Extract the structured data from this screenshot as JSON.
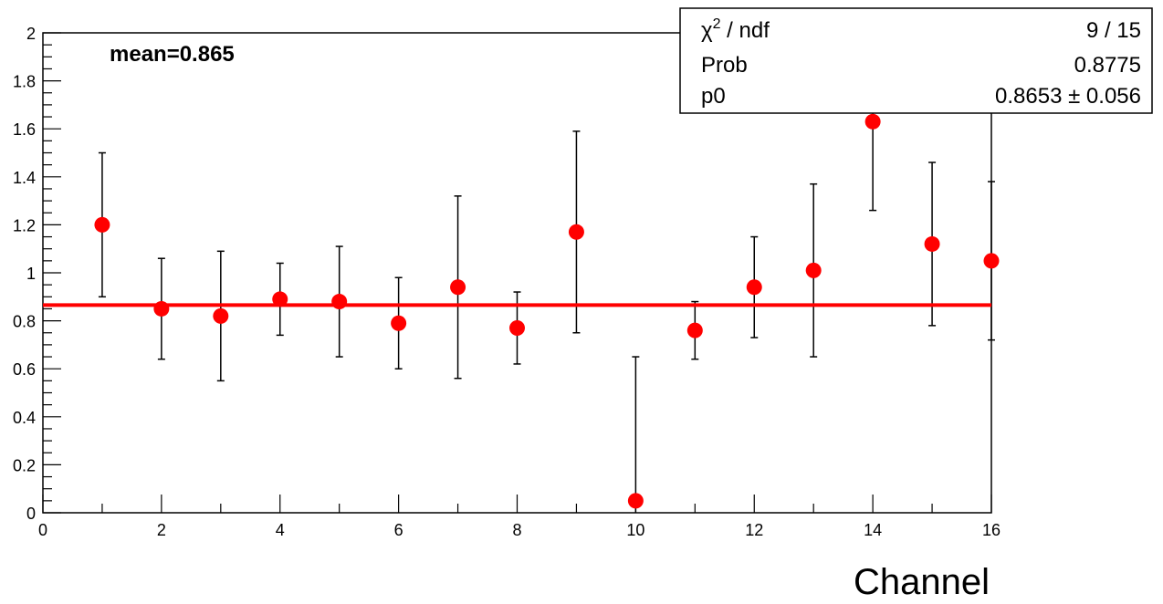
{
  "chart_data": {
    "type": "scatter",
    "xlabel": "Channel",
    "ylabel": "",
    "xlim": [
      0,
      16
    ],
    "ylim": [
      0,
      2
    ],
    "x_ticks": [
      "0",
      "2",
      "4",
      "6",
      "8",
      "10",
      "12",
      "14",
      "16"
    ],
    "y_ticks": [
      "0",
      "0.2",
      "0.4",
      "0.6",
      "0.8",
      "1",
      "1.2",
      "1.4",
      "1.6",
      "1.8",
      "2"
    ],
    "annotation": "mean=0.865",
    "marker_color": "#ff0000",
    "fit_color": "#ff0000",
    "fit_value": 0.8653,
    "points": [
      {
        "x": 1,
        "y": 1.2,
        "ylo": 0.9,
        "yhi": 1.5
      },
      {
        "x": 2,
        "y": 0.85,
        "ylo": 0.64,
        "yhi": 1.06
      },
      {
        "x": 3,
        "y": 0.82,
        "ylo": 0.55,
        "yhi": 1.09
      },
      {
        "x": 4,
        "y": 0.89,
        "ylo": 0.74,
        "yhi": 1.04
      },
      {
        "x": 5,
        "y": 0.88,
        "ylo": 0.65,
        "yhi": 1.11
      },
      {
        "x": 6,
        "y": 0.79,
        "ylo": 0.6,
        "yhi": 0.98
      },
      {
        "x": 7,
        "y": 0.94,
        "ylo": 0.56,
        "yhi": 1.32
      },
      {
        "x": 8,
        "y": 0.77,
        "ylo": 0.62,
        "yhi": 0.92
      },
      {
        "x": 9,
        "y": 1.17,
        "ylo": 0.75,
        "yhi": 1.59
      },
      {
        "x": 10,
        "y": 0.05,
        "ylo": 0.0,
        "yhi": 0.65
      },
      {
        "x": 11,
        "y": 0.76,
        "ylo": 0.64,
        "yhi": 0.88
      },
      {
        "x": 12,
        "y": 0.94,
        "ylo": 0.73,
        "yhi": 1.15
      },
      {
        "x": 13,
        "y": 1.01,
        "ylo": 0.65,
        "yhi": 1.37
      },
      {
        "x": 14,
        "y": 1.63,
        "ylo": 1.26,
        "yhi": 2.0
      },
      {
        "x": 15,
        "y": 1.12,
        "ylo": 0.78,
        "yhi": 1.46
      },
      {
        "x": 16,
        "y": 1.05,
        "ylo": 0.72,
        "yhi": 1.38
      }
    ],
    "stats_box": {
      "chi2_label": "χ",
      "chi2_sup": "2",
      "chi2_suffix": " / ndf",
      "chi2_value": "9 / 15",
      "prob_label": "Prob",
      "prob_value": "0.8775",
      "p0_label": "p0",
      "p0_value": "0.8653 ± 0.056"
    }
  }
}
